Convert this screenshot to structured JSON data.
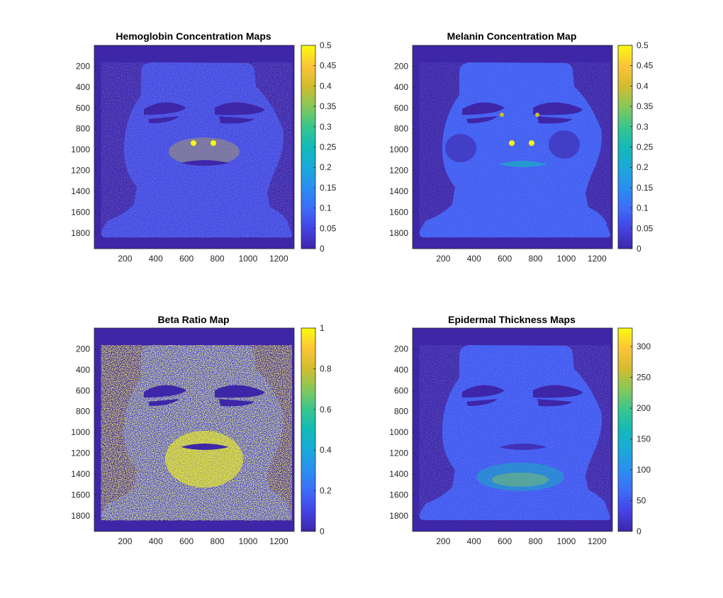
{
  "figure": {
    "background": "#ffffff"
  },
  "colormap": "parula",
  "colors": {
    "background_value_color": "#3e26a8",
    "high_value_color": "#f9fb0e"
  },
  "chart_data": [
    {
      "type": "heatmap",
      "title": "Hemoglobin Concentration Maps",
      "xticks": [
        200,
        400,
        600,
        800,
        1000,
        1200
      ],
      "yticks": [
        200,
        400,
        600,
        800,
        1000,
        1200,
        1400,
        1600,
        1800
      ],
      "xlim": [
        0,
        1300
      ],
      "ylim": [
        0,
        1950
      ],
      "y_direction": "reverse",
      "colorbar": {
        "ticks": [
          0,
          0.05,
          0.1,
          0.15,
          0.2,
          0.25,
          0.3,
          0.35,
          0.4,
          0.45,
          0.5
        ],
        "range": [
          0,
          0.5
        ]
      },
      "image_content": "face map; background = 0; skin mostly ~0.1-0.15, highest (~0.3-0.5) around mouth, chin and beard area"
    },
    {
      "type": "heatmap",
      "title": "Melanin Concentration Map",
      "xticks": [
        200,
        400,
        600,
        800,
        1000,
        1200
      ],
      "yticks": [
        200,
        400,
        600,
        800,
        1000,
        1200,
        1400,
        1600,
        1800
      ],
      "xlim": [
        0,
        1300
      ],
      "ylim": [
        0,
        1950
      ],
      "y_direction": "reverse",
      "colorbar": {
        "ticks": [
          0,
          0.05,
          0.1,
          0.15,
          0.2,
          0.25,
          0.3,
          0.35,
          0.4,
          0.45,
          0.5
        ],
        "range": [
          0,
          0.5
        ]
      },
      "image_content": "face map; background = 0; skin mostly ~0.1-0.15, few bright spots near nostrils, eye corners and lips"
    },
    {
      "type": "heatmap",
      "title": "Beta Ratio Map",
      "xticks": [
        200,
        400,
        600,
        800,
        1000,
        1200
      ],
      "yticks": [
        200,
        400,
        600,
        800,
        1000,
        1200,
        1400,
        1600,
        1800
      ],
      "xlim": [
        0,
        1300
      ],
      "ylim": [
        0,
        1950
      ],
      "y_direction": "reverse",
      "colorbar": {
        "ticks": [
          0,
          0.2,
          0.4,
          0.6,
          0.8,
          1
        ],
        "range": [
          0,
          1
        ]
      },
      "image_content": "face map; background = 0; skin very noisy mix of 0 and ~1 values, mostly high around mouth and chin"
    },
    {
      "type": "heatmap",
      "title": "Epidermal Thickness Maps",
      "xticks": [
        200,
        400,
        600,
        800,
        1000,
        1200
      ],
      "yticks": [
        200,
        400,
        600,
        800,
        1000,
        1200,
        1400,
        1600,
        1800
      ],
      "xlim": [
        0,
        1300
      ],
      "ylim": [
        0,
        1950
      ],
      "y_direction": "reverse",
      "colorbar": {
        "ticks": [
          0,
          50,
          100,
          150,
          200,
          250,
          300
        ],
        "range": [
          0,
          330
        ]
      },
      "image_content": "face map; background = 0; skin mostly ~50-80, higher (~150-250) in chin/beard band"
    }
  ]
}
